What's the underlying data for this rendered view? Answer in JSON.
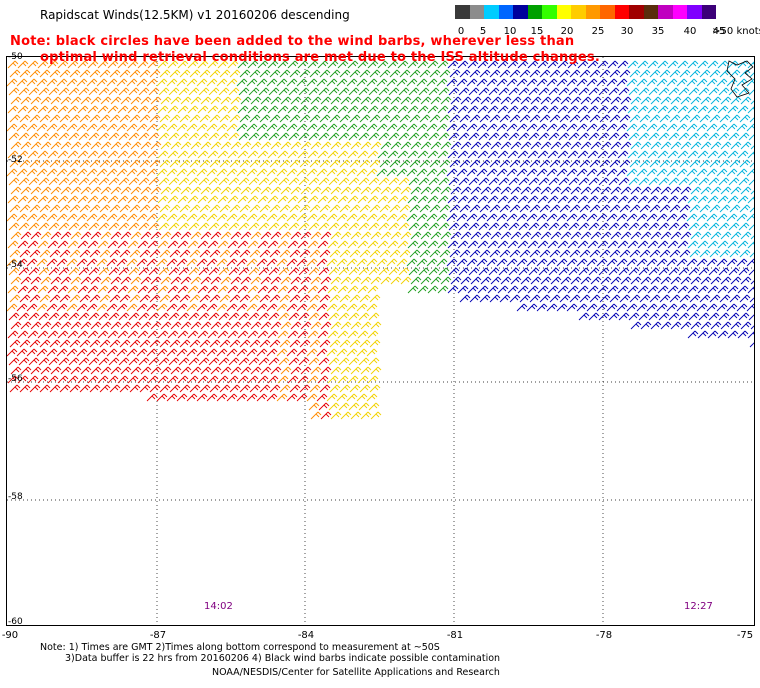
{
  "title": "Rapidscat Winds(12.5KM) v1 20160206 descending",
  "note_lines": [
    "Note: black circles have been added to the wind barbs, wherever less than",
    "optimal wind retrieval conditions are met due to the ISS altitude changes."
  ],
  "colorbar": {
    "colors": [
      "#3a3a3a",
      "#8c8c8c",
      "#00ccff",
      "#0066ff",
      "#00009c",
      "#00a000",
      "#33ff00",
      "#ffff00",
      "#ffcc00",
      "#ff9900",
      "#ff6600",
      "#ff0000",
      "#a00000",
      "#5a2d0c",
      "#c000c0",
      "#ff00ff",
      "#8000ff",
      "#3c0078"
    ],
    "labels": [
      "0",
      "5",
      "10",
      "15",
      "20",
      "25",
      "30",
      "35",
      "40",
      "45",
      ">50 knots"
    ]
  },
  "y_ticks": [
    "-50",
    "-52",
    "-54",
    "-56",
    "-58",
    "-60"
  ],
  "x_ticks": [
    "-90",
    "-87",
    "-84",
    "-81",
    "-78",
    "-75"
  ],
  "pass_times": [
    "14:02",
    "12:27"
  ],
  "footnotes": [
    "Note: 1) Times are GMT 2)Times along bottom correspond to measurement at ~50S",
    "3)Data buffer is 22 hrs from 20160206 4) Black wind barbs indicate possible contamination",
    "NOAA/NESDIS/Center for Satellite Applications and Research"
  ],
  "region_colors": {
    "red": "#e60000",
    "orange": "#ff8c00",
    "yellow": "#f2d200",
    "green": "#1f9e1f",
    "blue": "#0000b4",
    "cyan": "#00b4dc",
    "land": "#000000"
  }
}
